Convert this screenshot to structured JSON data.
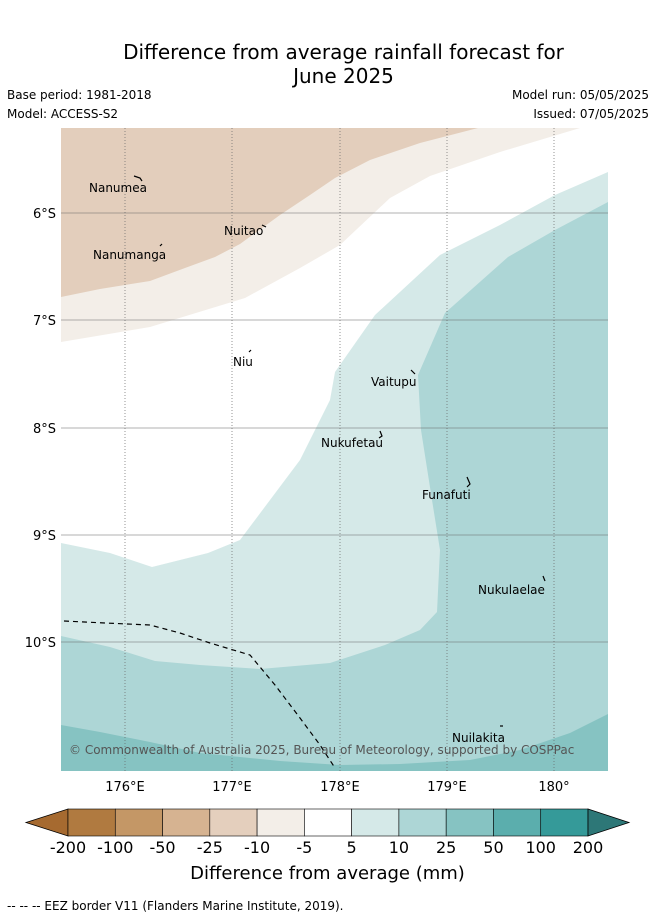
{
  "header": {
    "title_line1": "Difference from average rainfall forecast for",
    "title_line2": "June 2025",
    "base_period": "Base period: 1981-2018",
    "model": "Model: ACCESS-S2",
    "model_run": "Model run: 05/05/2025",
    "issued": "Issued: 07/05/2025"
  },
  "map": {
    "lat_labels": [
      "6°S",
      "7°S",
      "8°S",
      "9°S",
      "10°S"
    ],
    "lon_labels": [
      "176°E",
      "177°E",
      "178°E",
      "179°E",
      "180°"
    ],
    "places": [
      {
        "name": "Nanumea"
      },
      {
        "name": "Nuitao"
      },
      {
        "name": "Nanumanga"
      },
      {
        "name": "Niu"
      },
      {
        "name": "Vaitupu"
      },
      {
        "name": "Nukufetau"
      },
      {
        "name": "Funafuti"
      },
      {
        "name": "Nukulaelae"
      },
      {
        "name": "Nuilakita"
      }
    ],
    "copyright": "© Commonwealth of Australia 2025, Bureau of Meteorology, supported by COSPPac",
    "colors": {
      "dry_-25_-10": "#e3cebc",
      "dry_-10_-5": "#f3eee8",
      "neutral": "#ffffff",
      "wet_5_10": "#d5e9e8",
      "wet_10_25": "#add6d6",
      "wet_25_50": "#86c3c2"
    }
  },
  "colorbar": {
    "title": "Difference from average (mm)",
    "ticks": [
      "-200",
      "-100",
      "-50",
      "-25",
      "-10",
      "-5",
      "5",
      "10",
      "25",
      "50",
      "100",
      "200"
    ],
    "colors": [
      "#a66a30",
      "#b07a40",
      "#c49766",
      "#d6b391",
      "#e4cfbd",
      "#f3eee8",
      "#ffffff",
      "#d5e9e8",
      "#add6d6",
      "#86c3c2",
      "#5baead",
      "#359a99",
      "#2d7777"
    ]
  },
  "footer": {
    "eez": "--  --  -- EEZ border V11 (Flanders Marine Institute, 2019)."
  }
}
